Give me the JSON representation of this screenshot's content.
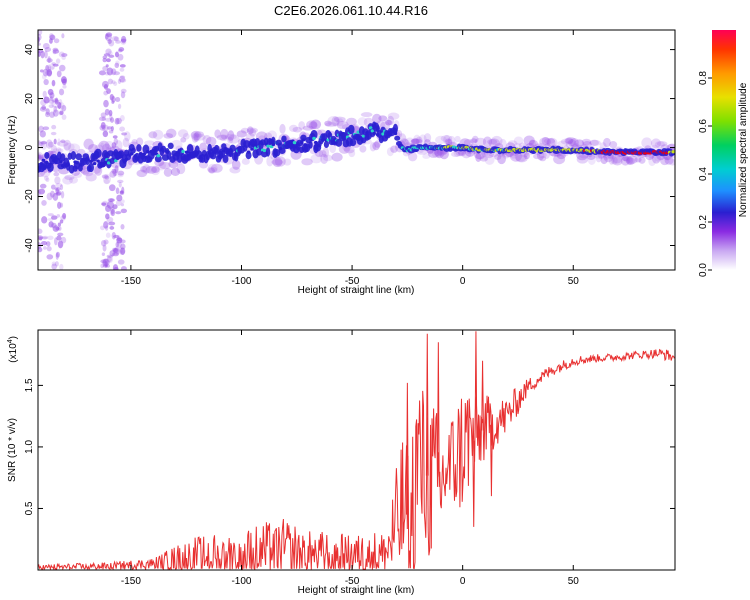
{
  "title": "C2E6.2026.061.10.44.R16",
  "colors": {
    "series": "#e83030",
    "spectral_core": "#2a1fd0",
    "spectral_halo": "#9a55e8",
    "spectral_mid": "#2ad0c8",
    "spectral_high": "#c8e020",
    "spectral_peak": "#e80018"
  },
  "chart_data": [
    {
      "type": "heatmap",
      "name": "spectrogram",
      "xlabel": "Height of straight line (km)",
      "ylabel": "Frequency (Hz)",
      "xlim": [
        -192,
        96
      ],
      "ylim": [
        -50,
        48
      ],
      "x_ticks": [
        -150,
        -100,
        -50,
        0,
        50
      ],
      "y_ticks": [
        -40,
        -20,
        0,
        20,
        40
      ],
      "colorbar": {
        "label": "Normalized spectral amplitude",
        "range": [
          0,
          1
        ],
        "ticks": [
          "0.0",
          "0.2",
          "0.4",
          "0.6",
          "0.8"
        ],
        "tick_values": [
          0.0,
          0.2,
          0.4,
          0.6,
          0.8
        ]
      },
      "ridge": {
        "heights_km": [
          -190,
          -175,
          -160,
          -150,
          -130,
          -110,
          -90,
          -70,
          -55,
          -45,
          -40,
          -35,
          -30,
          -28,
          -25,
          -20,
          -10,
          0,
          10,
          30,
          50,
          70,
          90,
          96
        ],
        "frequency_hz": [
          -6,
          -6,
          -5,
          -3,
          -2,
          -2,
          0,
          2,
          4,
          6,
          7,
          6,
          5,
          0,
          -1,
          0,
          0,
          0,
          -1,
          -1,
          -1,
          -2,
          -2,
          -2
        ],
        "amplitude": [
          0.25,
          0.25,
          0.3,
          0.3,
          0.3,
          0.3,
          0.32,
          0.35,
          0.35,
          0.35,
          0.35,
          0.35,
          0.3,
          0.32,
          0.4,
          0.45,
          0.5,
          0.55,
          0.55,
          0.6,
          0.7,
          0.9,
          0.95,
          0.6
        ]
      }
    },
    {
      "type": "line",
      "name": "snr",
      "xlabel": "Height of straight line (km)",
      "ylabel": "SNR (10 * v/v)",
      "y_multiplier": "(x10",
      "y_multiplier_exp": "4",
      "y_multiplier_close": ")",
      "xlim": [
        -192,
        96
      ],
      "ylim": [
        0,
        1.95
      ],
      "x_ticks": [
        -150,
        -100,
        -50,
        0,
        50
      ],
      "y_ticks": [
        0.5,
        1.0,
        1.5
      ],
      "y_tick_labels": [
        "0.5",
        "1.0",
        "1.5"
      ],
      "envelope": {
        "x": [
          -192,
          -160,
          -140,
          -130,
          -120,
          -100,
          -90,
          -80,
          -70,
          -60,
          -50,
          -40,
          -35,
          -30,
          -27,
          -25,
          -22,
          -20,
          -18,
          -15,
          -12,
          -10,
          -8,
          -5,
          -3,
          0,
          3,
          5,
          7,
          10,
          15,
          20,
          25,
          30,
          40,
          50,
          60,
          70,
          80,
          88,
          92,
          96
        ],
        "base": [
          0.02,
          0.03,
          0.05,
          0.08,
          0.12,
          0.12,
          0.15,
          0.18,
          0.12,
          0.12,
          0.12,
          0.12,
          0.12,
          0.35,
          0.5,
          0.45,
          0.7,
          0.9,
          0.8,
          0.75,
          0.7,
          0.65,
          0.8,
          0.85,
          0.9,
          1.0,
          1.1,
          1.05,
          1.1,
          1.15,
          1.2,
          1.25,
          1.38,
          1.5,
          1.62,
          1.7,
          1.72,
          1.73,
          1.75,
          1.76,
          1.75,
          1.72
        ],
        "noise": [
          0.03,
          0.04,
          0.06,
          0.15,
          0.2,
          0.25,
          0.3,
          0.3,
          0.25,
          0.25,
          0.2,
          0.25,
          0.25,
          0.6,
          0.8,
          0.7,
          1.0,
          1.0,
          0.9,
          0.9,
          0.8,
          0.6,
          0.5,
          0.55,
          0.6,
          0.7,
          0.6,
          0.45,
          0.4,
          0.35,
          0.25,
          0.2,
          0.15,
          0.08,
          0.06,
          0.05,
          0.04,
          0.04,
          0.04,
          0.05,
          0.06,
          0.05
        ]
      },
      "peaks": [
        {
          "x": -16,
          "y": 1.92
        },
        {
          "x": -25,
          "y": 1.52
        },
        {
          "x": -11,
          "y": 1.85
        },
        {
          "x": 6,
          "y": 1.94
        },
        {
          "x": 9,
          "y": 1.7
        },
        {
          "x": 5,
          "y": 0.35
        },
        {
          "x": 13,
          "y": 0.6
        }
      ]
    }
  ]
}
